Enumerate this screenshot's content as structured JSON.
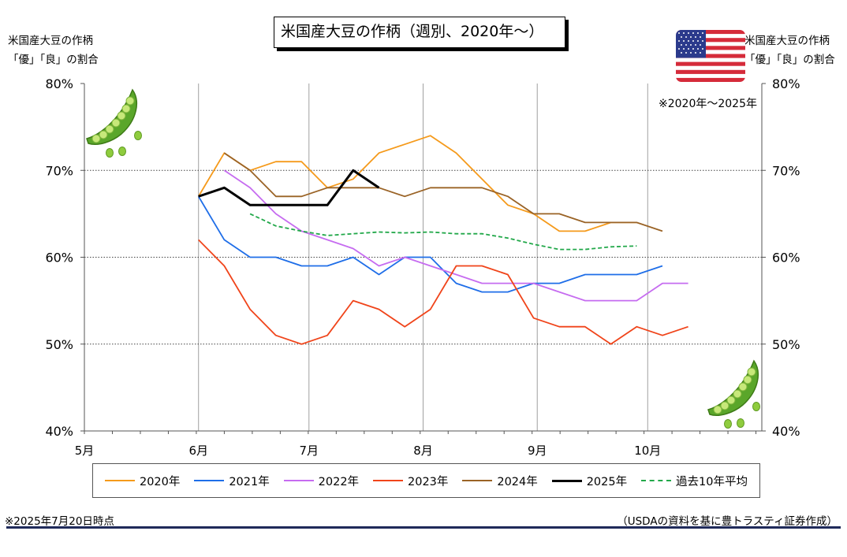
{
  "title": "米国産大豆の作柄（週別、2020年～）",
  "left_axis_title": [
    "米国産大豆の作柄",
    "「優」「良」の割合"
  ],
  "right_axis_title": [
    "米国産大豆の作柄",
    "「優」「良」の割合"
  ],
  "range_note": "※2020年～2025年",
  "footer_left": "※2025年7月20日時点",
  "footer_right": "（USDAの資料を基に豊トラスティ証券作成）",
  "colors": {
    "2020年": "#f59a1b",
    "2021年": "#1f6ee8",
    "2022年": "#c66cf0",
    "2023年": "#f0441a",
    "2024年": "#9a6326",
    "2025年": "#000000",
    "過去10年平均": "#22a84a",
    "frame_rule": "#1f2a5a"
  },
  "chart_data": {
    "type": "line",
    "title": "米国産大豆の作柄（週別、2020年～）",
    "xlabel": "",
    "ylabel": "米国産大豆の作柄「優」「良」の割合",
    "x_ticks": [
      "5月",
      "6月",
      "7月",
      "8月",
      "9月",
      "10月"
    ],
    "x_tick_days": [
      121,
      152,
      182,
      213,
      244,
      274
    ],
    "xlim": [
      121,
      305
    ],
    "y_ticks": [
      "40%",
      "50%",
      "60%",
      "70%",
      "80%"
    ],
    "ylim": [
      40,
      80
    ],
    "grid": true,
    "legend_position": "bottom",
    "series": [
      {
        "name": "2020年",
        "style": "solid",
        "x": [
          152,
          159,
          166,
          173,
          180,
          187,
          194,
          201,
          208,
          215,
          222,
          229,
          236,
          243,
          250,
          257,
          264,
          271
        ],
        "y": [
          67,
          72,
          70,
          71,
          71,
          68,
          69,
          72,
          73,
          74,
          72,
          69,
          66,
          65,
          63,
          63,
          64,
          64
        ]
      },
      {
        "name": "2021年",
        "style": "solid",
        "x": [
          152,
          159,
          166,
          173,
          180,
          187,
          194,
          201,
          208,
          215,
          222,
          229,
          236,
          243,
          250,
          257,
          264,
          271,
          278
        ],
        "y": [
          67,
          62,
          60,
          60,
          59,
          59,
          60,
          58,
          60,
          60,
          57,
          56,
          56,
          57,
          57,
          58,
          58,
          58,
          59
        ]
      },
      {
        "name": "2022年",
        "style": "solid",
        "x": [
          159,
          166,
          173,
          180,
          187,
          194,
          201,
          208,
          215,
          222,
          229,
          236,
          243,
          250,
          257,
          264,
          271,
          278,
          285
        ],
        "y": [
          70,
          68,
          65,
          63,
          62,
          61,
          59,
          60,
          59,
          58,
          57,
          57,
          57,
          56,
          55,
          55,
          55,
          57,
          57
        ]
      },
      {
        "name": "2023年",
        "style": "solid",
        "x": [
          152,
          159,
          166,
          173,
          180,
          187,
          194,
          201,
          208,
          215,
          222,
          229,
          236,
          243,
          250,
          257,
          264,
          271,
          278,
          285
        ],
        "y": [
          62,
          59,
          54,
          51,
          50,
          51,
          55,
          54,
          52,
          54,
          59,
          59,
          58,
          53,
          52,
          52,
          50,
          52,
          51,
          52
        ]
      },
      {
        "name": "2024年",
        "style": "solid",
        "x": [
          159,
          166,
          173,
          180,
          187,
          194,
          201,
          208,
          215,
          222,
          229,
          236,
          243,
          250,
          257,
          264,
          271,
          278
        ],
        "y": [
          72,
          70,
          67,
          67,
          68,
          68,
          68,
          67,
          68,
          68,
          68,
          67,
          65,
          65,
          64,
          64,
          64,
          63
        ]
      },
      {
        "name": "2025年",
        "style": "solid-bold",
        "x": [
          152,
          159,
          166,
          173,
          180,
          187,
          194,
          201
        ],
        "y": [
          67,
          68,
          66,
          66,
          66,
          66,
          70,
          68
        ]
      },
      {
        "name": "過去10年平均",
        "style": "dashed",
        "x": [
          166,
          173,
          180,
          187,
          194,
          201,
          208,
          215,
          222,
          229,
          236,
          243,
          250,
          257,
          264,
          271
        ],
        "y": [
          65,
          63.6,
          63,
          62.5,
          62.7,
          62.9,
          62.8,
          62.9,
          62.7,
          62.7,
          62.2,
          61.5,
          60.9,
          60.9,
          61.2,
          61.3
        ]
      }
    ]
  }
}
